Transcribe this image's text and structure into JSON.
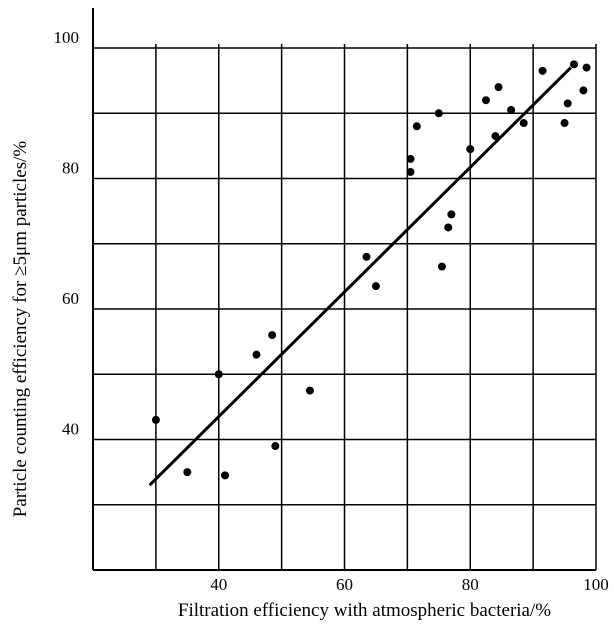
{
  "chart_data": {
    "type": "scatter",
    "title": "",
    "xlabel": "Filtration efficiency with atmospheric bacteria/%",
    "ylabel": "Particle counting efficiency for ≥5μm particles/%",
    "xlim": [
      20,
      100
    ],
    "ylim": [
      20,
      100
    ],
    "x_ticks": [
      40,
      60,
      80,
      100
    ],
    "y_ticks": [
      40,
      60,
      80,
      100
    ],
    "grid": true,
    "points": [
      {
        "x": 30,
        "y": 43
      },
      {
        "x": 35,
        "y": 35
      },
      {
        "x": 40,
        "y": 50
      },
      {
        "x": 41,
        "y": 34.5
      },
      {
        "x": 46,
        "y": 53
      },
      {
        "x": 48.5,
        "y": 56
      },
      {
        "x": 49,
        "y": 39
      },
      {
        "x": 54.5,
        "y": 47.5
      },
      {
        "x": 63.5,
        "y": 68
      },
      {
        "x": 65,
        "y": 63.5
      },
      {
        "x": 70.5,
        "y": 81
      },
      {
        "x": 70.5,
        "y": 83
      },
      {
        "x": 71.5,
        "y": 88
      },
      {
        "x": 75,
        "y": 90
      },
      {
        "x": 75.5,
        "y": 66.5
      },
      {
        "x": 76.5,
        "y": 72.5
      },
      {
        "x": 77,
        "y": 74.5
      },
      {
        "x": 80,
        "y": 84.5
      },
      {
        "x": 82.5,
        "y": 92
      },
      {
        "x": 84,
        "y": 86.5
      },
      {
        "x": 84.5,
        "y": 94
      },
      {
        "x": 86.5,
        "y": 90.5
      },
      {
        "x": 88.5,
        "y": 88.5
      },
      {
        "x": 91.5,
        "y": 96.5
      },
      {
        "x": 95,
        "y": 88.5
      },
      {
        "x": 95.5,
        "y": 91.5
      },
      {
        "x": 96.5,
        "y": 97.5
      },
      {
        "x": 98,
        "y": 93.5
      },
      {
        "x": 98.5,
        "y": 97
      }
    ],
    "fit_line": {
      "x": [
        29,
        96
      ],
      "y": [
        33,
        97
      ]
    }
  }
}
